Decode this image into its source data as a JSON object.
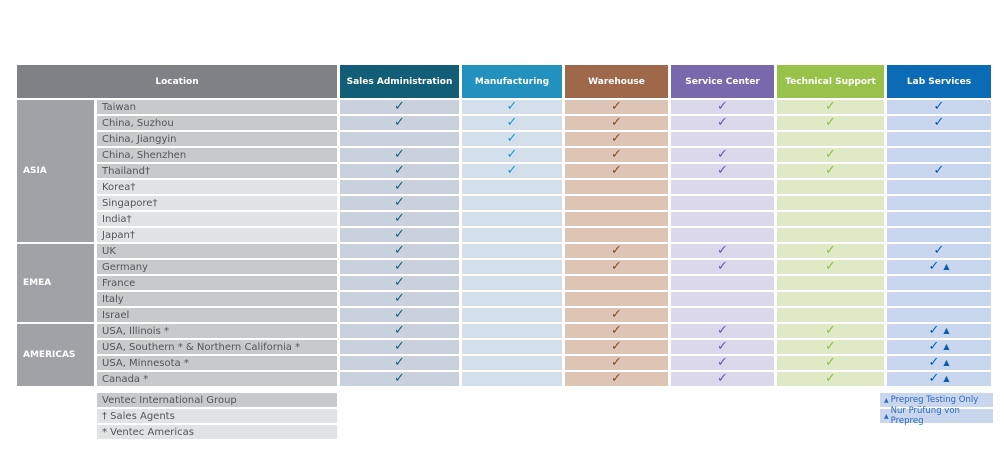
{
  "header": {
    "location": "Location",
    "columns": [
      {
        "key": "sales",
        "label": "Sales Administration",
        "color": "#135e77",
        "cell": "#c9d2dc",
        "check": "#135e77"
      },
      {
        "key": "mfg",
        "label": "Manufacturing",
        "color": "#2391bd",
        "cell": "#d3e0ec",
        "check": "#1f94c4"
      },
      {
        "key": "wh",
        "label": "Warehouse",
        "color": "#a0684a",
        "cell": "#dcc5b5",
        "check": "#8a4b26"
      },
      {
        "key": "svc",
        "label": "Service Center",
        "color": "#7a68ac",
        "cell": "#dcd8ec",
        "check": "#6a52a3"
      },
      {
        "key": "tech",
        "label": "Technical Support",
        "color": "#98c24a",
        "cell": "#e0e9c5",
        "check": "#8cc13f"
      },
      {
        "key": "lab",
        "label": "Lab Services",
        "color": "#0b6cb5",
        "cell": "#c8d6ee",
        "check": "#0b5fb0"
      }
    ]
  },
  "regions": [
    {
      "name": "ASIA",
      "rows": [
        {
          "loc": "Taiwan",
          "v": [
            1,
            1,
            1,
            1,
            1,
            1
          ]
        },
        {
          "loc": "China, Suzhou",
          "v": [
            1,
            1,
            1,
            1,
            1,
            1
          ]
        },
        {
          "loc": "China, Jiangyin",
          "v": [
            0,
            1,
            1,
            0,
            0,
            0
          ]
        },
        {
          "loc": "China, Shenzhen",
          "v": [
            1,
            1,
            1,
            1,
            1,
            0
          ]
        },
        {
          "loc": "Thailand†",
          "v": [
            1,
            1,
            1,
            1,
            1,
            1
          ]
        },
        {
          "loc": "Korea†",
          "v": [
            1,
            0,
            0,
            0,
            0,
            0
          ],
          "light": true
        },
        {
          "loc": "Singapore†",
          "v": [
            1,
            0,
            0,
            0,
            0,
            0
          ],
          "light": true
        },
        {
          "loc": "India†",
          "v": [
            1,
            0,
            0,
            0,
            0,
            0
          ],
          "light": true
        },
        {
          "loc": "Japan†",
          "v": [
            1,
            0,
            0,
            0,
            0,
            0
          ],
          "light": true
        }
      ]
    },
    {
      "name": "EMEA",
      "rows": [
        {
          "loc": "UK",
          "v": [
            1,
            0,
            1,
            1,
            1,
            1
          ]
        },
        {
          "loc": "Germany",
          "v": [
            1,
            0,
            1,
            1,
            1,
            2
          ]
        },
        {
          "loc": "France",
          "v": [
            1,
            0,
            0,
            0,
            0,
            0
          ]
        },
        {
          "loc": "Italy",
          "v": [
            1,
            0,
            0,
            0,
            0,
            0
          ]
        },
        {
          "loc": "Israel",
          "v": [
            1,
            0,
            1,
            0,
            0,
            0
          ]
        }
      ]
    },
    {
      "name": "AMERICAS",
      "rows": [
        {
          "loc": "USA, Illinois *",
          "v": [
            1,
            0,
            1,
            1,
            1,
            2
          ]
        },
        {
          "loc": "USA, Southern * & Northern California *",
          "v": [
            1,
            0,
            1,
            1,
            1,
            2
          ]
        },
        {
          "loc": "USA, Minnesota *",
          "v": [
            1,
            0,
            1,
            1,
            1,
            2
          ]
        },
        {
          "loc": "Canada *",
          "v": [
            1,
            0,
            1,
            1,
            1,
            2
          ]
        }
      ]
    }
  ],
  "legend": {
    "group": "Ventec International Group",
    "agents": "† Sales Agents",
    "americas": "* Ventec Americas",
    "prepreg_en": "Prepreg Testing Only",
    "prepreg_de": "Nur Prüfung von Prepreg"
  }
}
